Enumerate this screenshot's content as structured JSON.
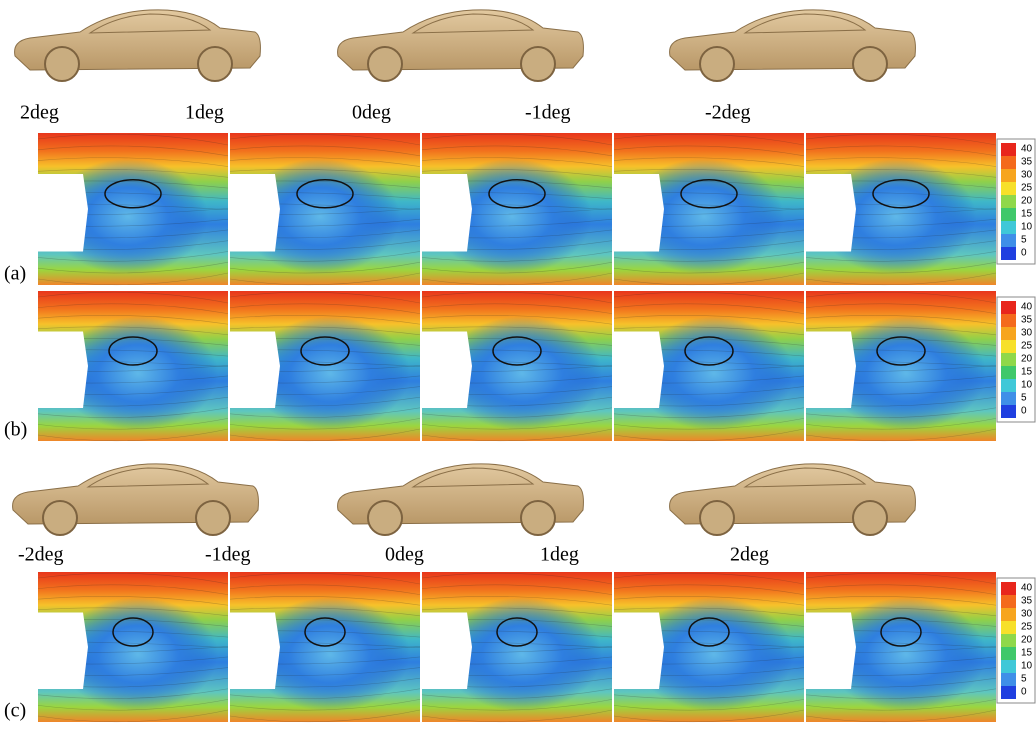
{
  "top_labels": [
    "2deg",
    "1deg",
    "0deg",
    "-1deg",
    "-2deg"
  ],
  "bottom_labels": [
    "-2deg",
    "-1deg",
    "0deg",
    "1deg",
    "2deg"
  ],
  "panels": [
    "(a)",
    "(b)",
    "(c)"
  ],
  "legend_ticks": [
    40,
    35,
    30,
    25,
    20,
    15,
    10,
    5,
    0
  ]
}
